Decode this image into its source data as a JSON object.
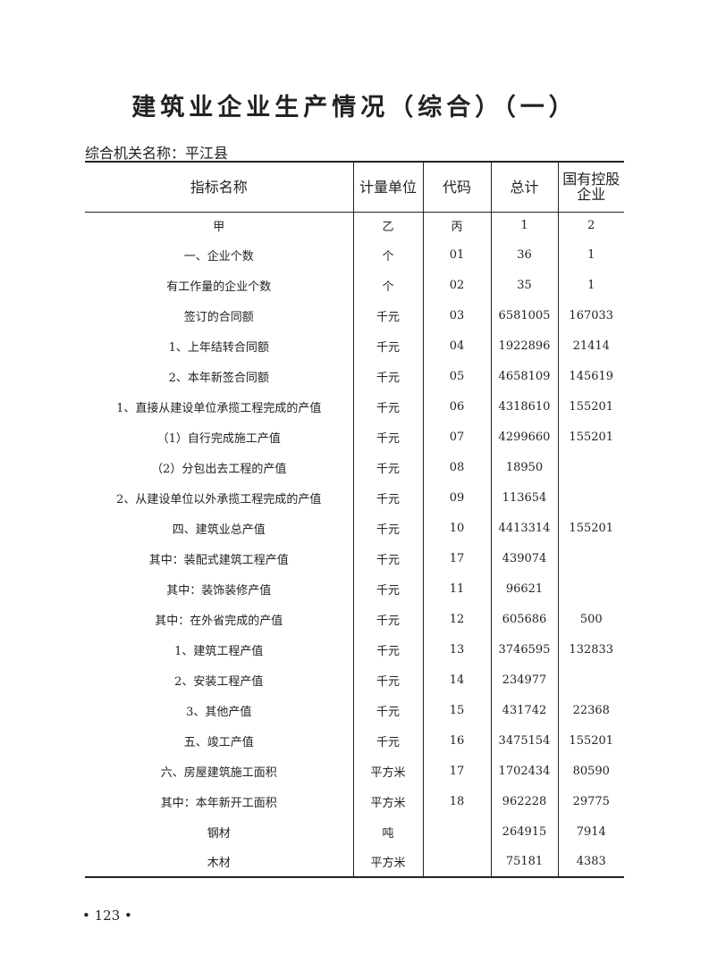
{
  "title": "建筑业企业生产情况（综合）（一）",
  "org_label": "综合机关名称：平江县",
  "table": {
    "headers": [
      "指标名称",
      "计量单位",
      "代码",
      "总计",
      "国有控股企业"
    ],
    "rows": [
      [
        "甲",
        "乙",
        "丙",
        "1",
        "2"
      ],
      [
        "一、企业个数",
        "个",
        "01",
        "36",
        "1"
      ],
      [
        "有工作量的企业个数",
        "个",
        "02",
        "35",
        "1"
      ],
      [
        "签订的合同额",
        "千元",
        "03",
        "6581005",
        "167033"
      ],
      [
        "1、上年结转合同额",
        "千元",
        "04",
        "1922896",
        "21414"
      ],
      [
        "2、本年新签合同额",
        "千元",
        "05",
        "4658109",
        "145619"
      ],
      [
        "1、直接从建设单位承揽工程完成的产值",
        "千元",
        "06",
        "4318610",
        "155201"
      ],
      [
        "（1）自行完成施工产值",
        "千元",
        "07",
        "4299660",
        "155201"
      ],
      [
        "（2）分包出去工程的产值",
        "千元",
        "08",
        "18950",
        ""
      ],
      [
        "2、从建设单位以外承揽工程完成的产值",
        "千元",
        "09",
        "113654",
        ""
      ],
      [
        "四、建筑业总产值",
        "千元",
        "10",
        "4413314",
        "155201"
      ],
      [
        "其中：装配式建筑工程产值",
        "千元",
        "17",
        "439074",
        ""
      ],
      [
        "其中：装饰装修产值",
        "千元",
        "11",
        "96621",
        ""
      ],
      [
        "其中：在外省完成的产值",
        "千元",
        "12",
        "605686",
        "500"
      ],
      [
        "1、建筑工程产值",
        "千元",
        "13",
        "3746595",
        "132833"
      ],
      [
        "2、安装工程产值",
        "千元",
        "14",
        "234977",
        ""
      ],
      [
        "3、其他产值",
        "千元",
        "15",
        "431742",
        "22368"
      ],
      [
        "五、竣工产值",
        "千元",
        "16",
        "3475154",
        "155201"
      ],
      [
        "六、房屋建筑施工面积",
        "平方米",
        "17",
        "1702434",
        "80590"
      ],
      [
        "其中：本年新开工面积",
        "平方米",
        "18",
        "962228",
        "29775"
      ],
      [
        "钢材",
        "吨",
        "",
        "264915",
        "7914"
      ],
      [
        "木材",
        "平方米",
        "",
        "75181",
        "4383"
      ]
    ]
  },
  "page_number": "• 123 •"
}
